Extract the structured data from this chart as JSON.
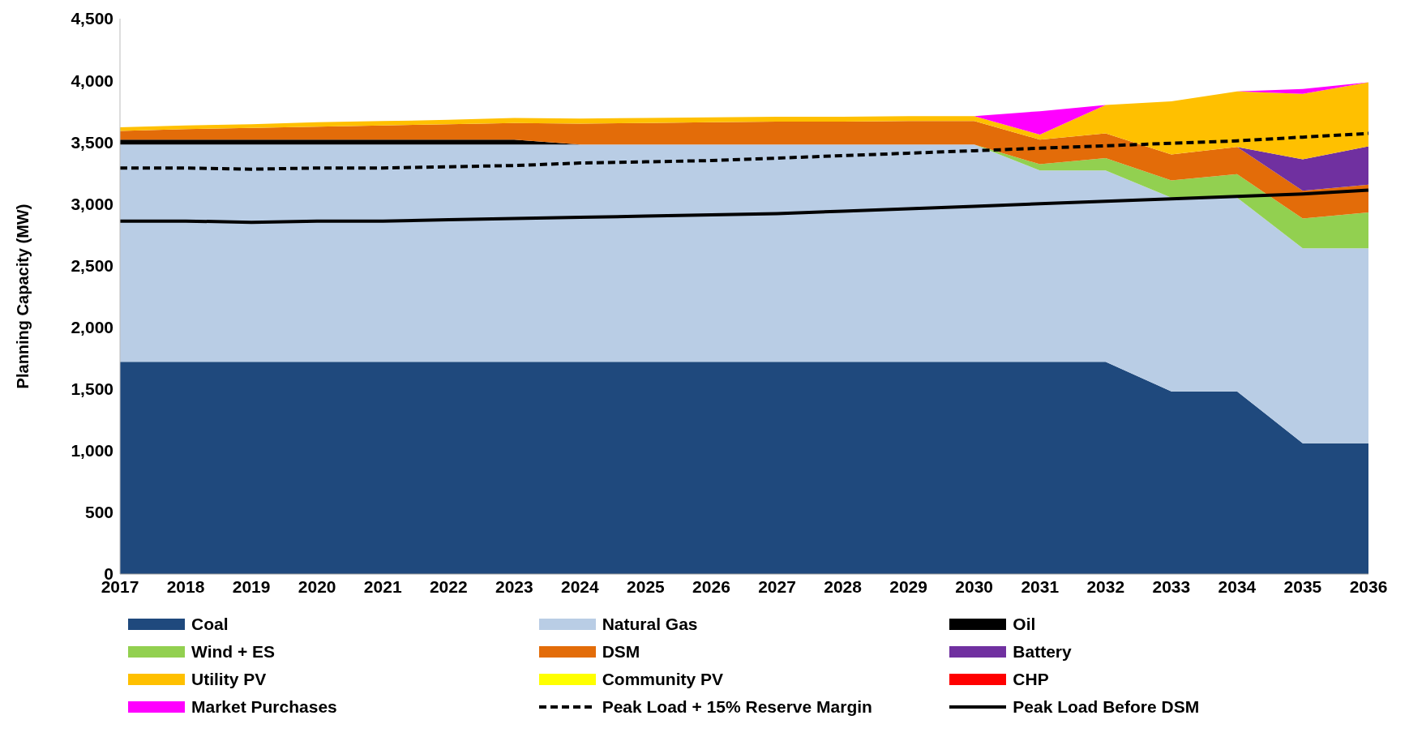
{
  "chart_data": {
    "type": "area",
    "stacked": true,
    "ylabel": "Planning Capacity (MW)",
    "ylim": [
      0,
      4500
    ],
    "yticks": [
      {
        "value": 0,
        "label": "0"
      },
      {
        "value": 500,
        "label": "500"
      },
      {
        "value": 1000,
        "label": "1,000"
      },
      {
        "value": 1500,
        "label": "1,500"
      },
      {
        "value": 2000,
        "label": "2,000"
      },
      {
        "value": 2500,
        "label": "2,500"
      },
      {
        "value": 3000,
        "label": "3,000"
      },
      {
        "value": 3500,
        "label": "3,500"
      },
      {
        "value": 4000,
        "label": "4,000"
      },
      {
        "value": 4500,
        "label": "4,500"
      }
    ],
    "grid": false,
    "legend": "bottom",
    "marker": "none",
    "categories": [
      "2017",
      "2018",
      "2019",
      "2020",
      "2021",
      "2022",
      "2023",
      "2024",
      "2025",
      "2026",
      "2027",
      "2028",
      "2029",
      "2030",
      "2031",
      "2032",
      "2033",
      "2034",
      "2035",
      "2036"
    ],
    "series": [
      {
        "name": "Coal",
        "color": "#1f497d",
        "values": [
          1720,
          1720,
          1720,
          1720,
          1720,
          1720,
          1720,
          1720,
          1720,
          1720,
          1720,
          1720,
          1720,
          1720,
          1720,
          1720,
          1480,
          1480,
          1060,
          1060
        ]
      },
      {
        "name": "Natural Gas",
        "color": "#b9cde5",
        "values": [
          1760,
          1760,
          1760,
          1760,
          1760,
          1760,
          1760,
          1760,
          1760,
          1760,
          1760,
          1760,
          1760,
          1760,
          1550,
          1550,
          1570,
          1570,
          1580,
          1580
        ]
      },
      {
        "name": "Oil",
        "color": "#000000",
        "values": [
          40,
          40,
          40,
          40,
          40,
          40,
          40,
          0,
          null,
          null,
          null,
          null,
          null,
          null,
          null,
          null,
          null,
          null,
          null,
          null
        ]
      },
      {
        "name": "Wind + ES",
        "color": "#92d050",
        "values": [
          null,
          null,
          null,
          null,
          null,
          null,
          null,
          null,
          null,
          null,
          null,
          null,
          null,
          0,
          50,
          100,
          140,
          190,
          240,
          290
        ]
      },
      {
        "name": "DSM",
        "color": "#e36c09",
        "values": [
          70,
          85,
          95,
          105,
          115,
          125,
          135,
          170,
          175,
          180,
          185,
          185,
          190,
          190,
          200,
          200,
          210,
          220,
          225,
          225
        ]
      },
      {
        "name": "Battery",
        "color": "#7030a0",
        "values": [
          null,
          null,
          null,
          null,
          null,
          null,
          null,
          null,
          null,
          null,
          null,
          null,
          null,
          null,
          null,
          null,
          null,
          0,
          255,
          310
        ]
      },
      {
        "name": "Utility PV",
        "color": "#ffc000",
        "values": [
          30,
          30,
          30,
          35,
          35,
          35,
          40,
          40,
          40,
          40,
          40,
          40,
          40,
          40,
          40,
          230,
          430,
          450,
          530,
          520
        ]
      },
      {
        "name": "Community PV",
        "color": "#ffff00",
        "values": [
          null,
          null,
          null,
          null,
          null,
          null,
          null,
          null,
          null,
          null,
          null,
          null,
          null,
          null,
          null,
          null,
          null,
          null,
          null,
          null
        ]
      },
      {
        "name": "CHP",
        "color": "#ff0000",
        "values": [
          null,
          null,
          null,
          null,
          null,
          null,
          null,
          null,
          null,
          null,
          null,
          null,
          null,
          null,
          null,
          null,
          null,
          null,
          null,
          null
        ]
      },
      {
        "name": "Market Purchases",
        "color": "#ff00ff",
        "values": [
          null,
          null,
          null,
          null,
          null,
          null,
          null,
          null,
          null,
          null,
          null,
          null,
          null,
          0,
          190,
          0,
          null,
          0,
          40,
          0
        ]
      },
      {
        "name": "Peak Load + 15% Reserve Margin",
        "type": "line",
        "line_style": "dashed",
        "color": "#000000",
        "values": [
          3290,
          3290,
          3280,
          3290,
          3290,
          3300,
          3310,
          3330,
          3340,
          3350,
          3370,
          3390,
          3410,
          3430,
          3450,
          3470,
          3490,
          3510,
          3540,
          3570
        ]
      },
      {
        "name": "Peak Load Before DSM",
        "type": "line",
        "line_style": "solid",
        "color": "#000000",
        "values": [
          2860,
          2860,
          2850,
          2860,
          2860,
          2870,
          2880,
          2890,
          2900,
          2910,
          2920,
          2940,
          2960,
          2980,
          3000,
          3020,
          3040,
          3060,
          3080,
          3110
        ]
      }
    ]
  }
}
